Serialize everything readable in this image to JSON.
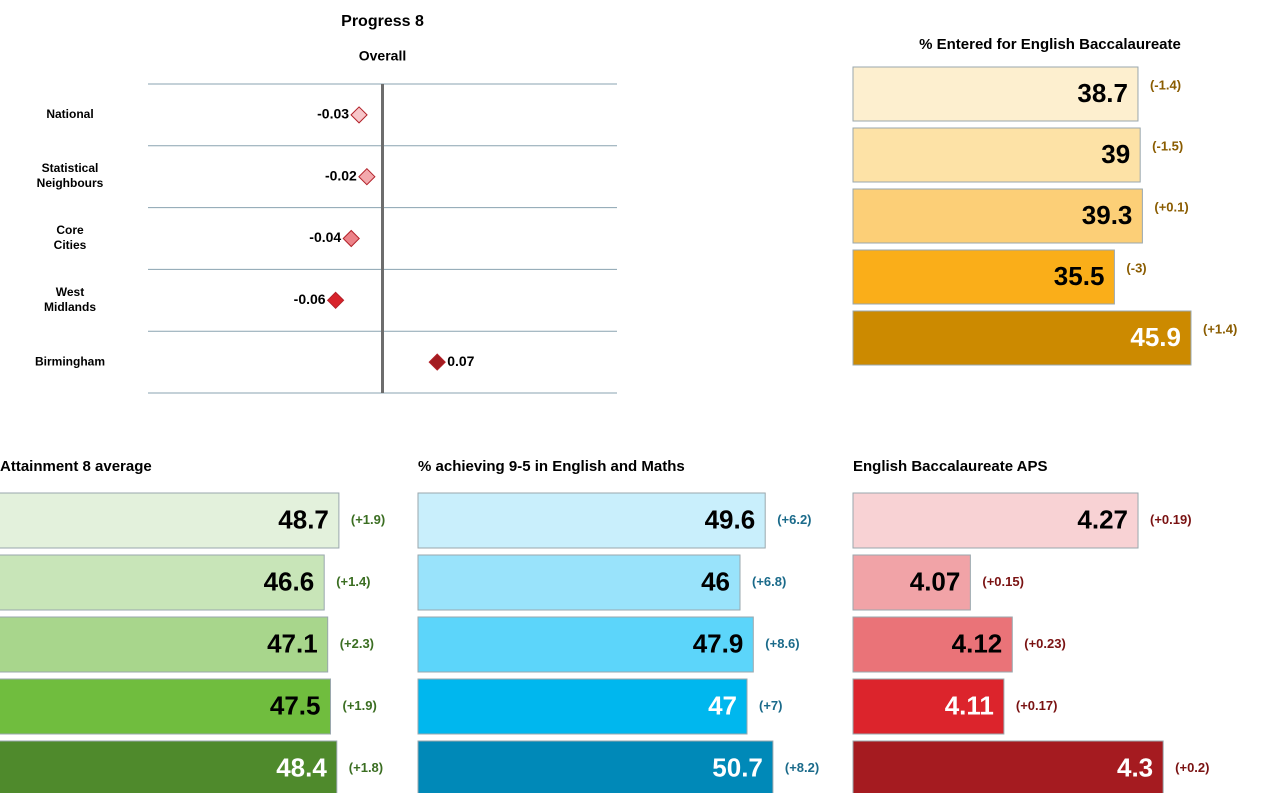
{
  "chart_data": [
    {
      "type": "dot",
      "title": "Progress 8",
      "subtitle": "Overall",
      "categories": [
        "National",
        "Statistical Neighbours",
        "Core Cities",
        "West Midlands",
        "Birmingham"
      ],
      "values": [
        -0.03,
        -0.02,
        -0.04,
        -0.06,
        0.07
      ],
      "colors": [
        "#f7c6c9",
        "#f3a9ad",
        "#ec8288",
        "#d8232a",
        "#a31b20"
      ],
      "xlim": [
        -0.3,
        0.3
      ]
    },
    {
      "type": "bar",
      "title": "% Entered for English Baccalaureate",
      "values": [
        38.7,
        39,
        39.3,
        35.5,
        45.9
      ],
      "annotations": [
        "(-1.4)",
        "(-1.5)",
        "(+0.1)",
        "(-3)",
        "(+1.4)"
      ],
      "colors": [
        "#fdefcf",
        "#fde2a6",
        "#fccf77",
        "#faae19",
        "#cc8a00"
      ],
      "annotation_color": "#8a5c00",
      "xlim": [
        0,
        55
      ]
    },
    {
      "type": "bar",
      "title": "Attainment 8 average",
      "values": [
        48.7,
        46.6,
        47.1,
        47.5,
        48.4
      ],
      "annotations": [
        "(+1.9)",
        "(+1.4)",
        "(+2.3)",
        "(+1.9)",
        "(+1.8)"
      ],
      "colors": [
        "#e3f1dc",
        "#c8e5b8",
        "#a8d68c",
        "#70bd3e",
        "#4f8a2c"
      ],
      "annotation_color": "#3b6e22",
      "xlim": [
        0,
        60
      ]
    },
    {
      "type": "bar",
      "title": "% achieving 9-5 in English and Maths",
      "values": [
        49.6,
        46,
        47.9,
        47,
        50.7
      ],
      "annotations": [
        "(+6.2)",
        "(+6.8)",
        "(+8.6)",
        "(+7)",
        "(+8.2)"
      ],
      "colors": [
        "#c9effc",
        "#99e3fb",
        "#5cd5fa",
        "#00b7ee",
        "#0089b8"
      ],
      "annotation_color": "#1a6a8a",
      "xlim": [
        0,
        60
      ]
    },
    {
      "type": "bar",
      "title": "English Baccalaureate APS",
      "values": [
        4.27,
        4.07,
        4.12,
        4.11,
        4.3
      ],
      "annotations": [
        "(+0.19)",
        "(+0.15)",
        "(+0.23)",
        "(+0.17)",
        "(+0.2)"
      ],
      "colors": [
        "#f8d2d4",
        "#f1a3a7",
        "#ea7378",
        "#dc242c",
        "#a51b20"
      ],
      "annotation_color": "#7a1212",
      "xlim": [
        3.93,
        4.4
      ]
    }
  ]
}
